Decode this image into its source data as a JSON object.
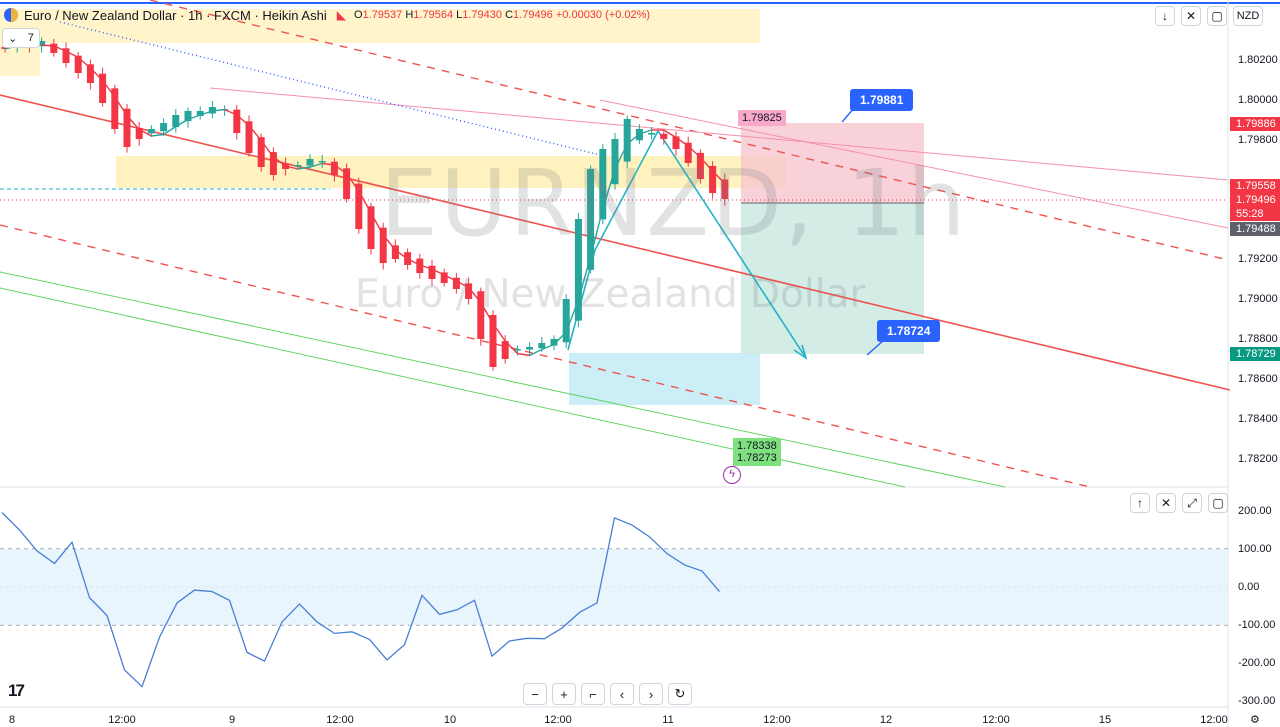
{
  "header": {
    "title": "Euro / New Zealand Dollar · 1h · FXCM · Heikin Ashi",
    "ohlc": {
      "o_k": "O",
      "o": "1.79537",
      "h_k": "H",
      "h": "1.79564",
      "l_k": "L",
      "l": "1.79430",
      "c_k": "C",
      "c": "1.79496",
      "change": "+0.00030 (+0.02%)"
    },
    "indicator_count": "7",
    "currency": "NZD"
  },
  "watermark": {
    "symbol": "EURNZD, 1h",
    "name": "Euro / New Zealand Dollar"
  },
  "price_axis": {
    "ticks": [
      "1.80200",
      "1.80000",
      "1.79800",
      "1.79200",
      "1.79000",
      "1.78800",
      "1.78600",
      "1.78400",
      "1.78200"
    ],
    "labels": {
      "stop": "1.79886",
      "last": "1.79558",
      "entry": "1.79496",
      "countdown": "55:28",
      "current": "1.79488",
      "target": "1.78729"
    }
  },
  "annotations": {
    "stop_callout": "1.79881",
    "target_callout": "1.78724",
    "pink_label": "1.79825",
    "green_label_1": "1.78338",
    "green_label_2": "1.78273"
  },
  "osc_axis": {
    "ticks": [
      "200.00",
      "100.00",
      "0.00",
      "-100.00",
      "-200.00",
      "-300.00"
    ]
  },
  "time_axis": {
    "ticks": [
      "8",
      "12:00",
      "9",
      "12:00",
      "10",
      "12:00",
      "11",
      "12:00",
      "12",
      "12:00",
      "15",
      "12:00"
    ]
  },
  "colors": {
    "up": "#26a69a",
    "down": "#f23645",
    "accent": "#2962ff",
    "trend": "#ef5350",
    "cyan": "#22b3c7"
  },
  "chart_data": {
    "type": "candlestick",
    "ha_close": [
      1.8025,
      1.8028,
      1.8026,
      1.8029,
      1.8023,
      1.8018,
      1.8013,
      1.8008,
      1.7998,
      1.7985,
      1.7976,
      1.798,
      1.7985,
      1.7988,
      1.7992,
      1.7994,
      1.7994,
      1.7996,
      1.7995,
      1.7983,
      1.7973,
      1.7966,
      1.7962,
      1.7965,
      1.7967,
      1.797,
      1.7969,
      1.7962,
      1.795,
      1.7935,
      1.7925,
      1.7918,
      1.792,
      1.7917,
      1.7913,
      1.791,
      1.7908,
      1.7905,
      1.79,
      1.788,
      1.7866,
      1.787,
      1.7875,
      1.7876,
      1.7878,
      1.788,
      1.79,
      1.794,
      1.7965,
      1.7975,
      1.798,
      1.799,
      1.7985,
      1.7983,
      1.798,
      1.7975,
      1.7968,
      1.796,
      1.7953,
      1.795
    ],
    "oscillator": [
      196,
      150,
      95,
      62,
      118,
      -28,
      -75,
      -218,
      -262,
      -132,
      -42,
      -8,
      -12,
      -35,
      -172,
      -195,
      -92,
      -45,
      -92,
      -122,
      -118,
      -138,
      -192,
      -152,
      -22,
      -72,
      -60,
      -35,
      -182,
      -142,
      -135,
      -136,
      -108,
      -67,
      -42,
      182,
      163,
      132,
      88,
      58,
      42,
      -12
    ]
  }
}
